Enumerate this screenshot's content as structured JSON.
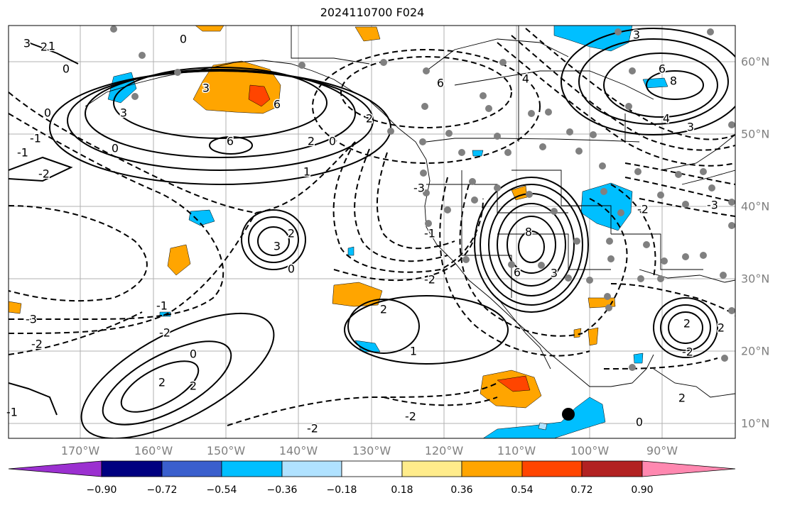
{
  "title": "2024110700 F024",
  "lon_labels": [
    "170°W",
    "160°W",
    "150°W",
    "140°W",
    "130°W",
    "120°W",
    "110°W",
    "100°W",
    "90°W"
  ],
  "lat_labels": [
    "60°N",
    "50°N",
    "40°N",
    "30°N",
    "20°N",
    "10°N"
  ],
  "colorbar": {
    "ticks": [
      "−0.90",
      "−0.72",
      "−0.54",
      "−0.36",
      "−0.18",
      "0.18",
      "0.36",
      "0.54",
      "0.72",
      "0.90"
    ],
    "colors": [
      "#9b30d0",
      "#000080",
      "#3a5fcd",
      "#00bfff",
      "#b0e2ff",
      "#ffffff",
      "#ffec8b",
      "#ffa500",
      "#ff4500",
      "#b22222",
      "#ff88b0"
    ]
  },
  "contour_labels": [
    "3",
    "2",
    "1",
    "0",
    "0",
    "0",
    "-1",
    "-1",
    "0",
    "-2",
    "-3",
    "-2",
    "-2",
    "-1",
    "3",
    "6",
    "6",
    "3",
    "2",
    "1",
    "0",
    "2",
    "6",
    "4",
    "6",
    "8",
    "4",
    "3",
    "3",
    "-2",
    "-3",
    "-1",
    "2",
    "8",
    "6",
    "3",
    "2",
    "3",
    "0",
    "2",
    "-2",
    "2",
    "1",
    "2",
    "-2",
    "-2",
    "0",
    "2",
    "2",
    "-2",
    "-3",
    "-1",
    "0"
  ],
  "palette": {
    "positive": "#000000",
    "grid": "#b0b0b0",
    "station": "#808080"
  }
}
